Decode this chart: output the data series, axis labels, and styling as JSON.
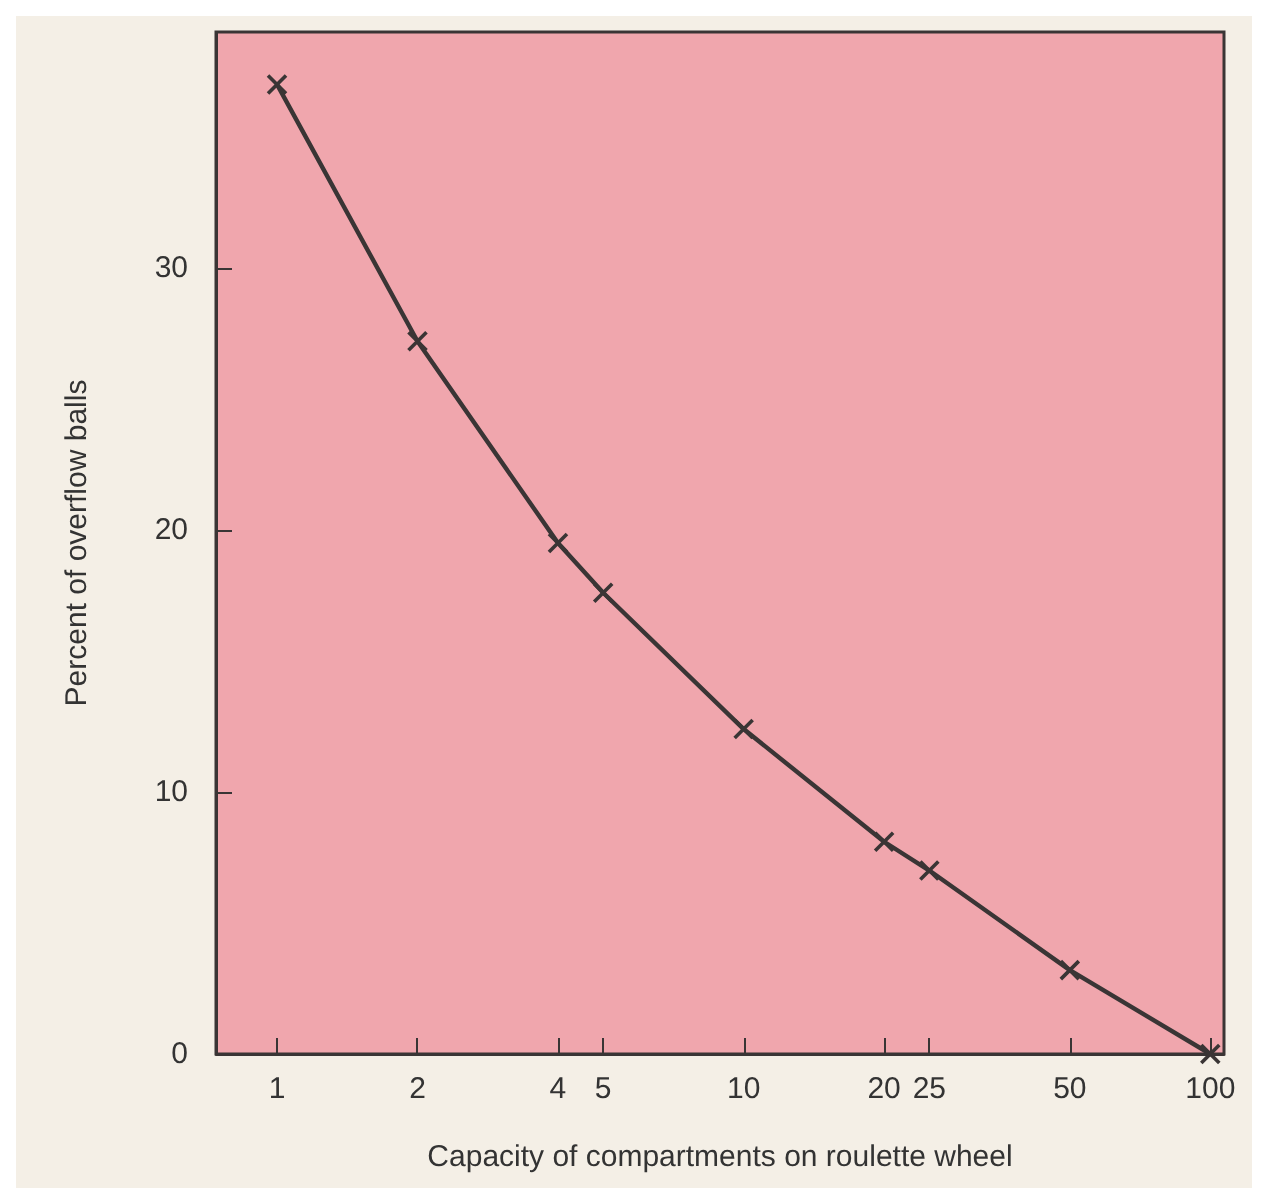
{
  "chart_data": {
    "type": "line",
    "xlabel": "Capacity of compartments on roulette wheel",
    "ylabel": "Percent of overflow balls",
    "x": [
      1,
      2,
      4,
      5,
      10,
      20,
      25,
      50,
      100
    ],
    "series": [
      {
        "color": "#3a3535",
        "values": [
          37.0,
          27.2,
          19.5,
          17.6,
          12.4,
          8.1,
          7.0,
          3.2,
          0
        ]
      }
    ],
    "log": "x",
    "xlim": [
      0.74,
      107
    ],
    "xticks": [
      1,
      2,
      4,
      5,
      10,
      20,
      25,
      50,
      100
    ],
    "ylim": [
      0,
      39
    ],
    "yticks": [
      0,
      10,
      20,
      30
    ],
    "grid": false,
    "marker": "cross",
    "line_style": "solid"
  }
}
